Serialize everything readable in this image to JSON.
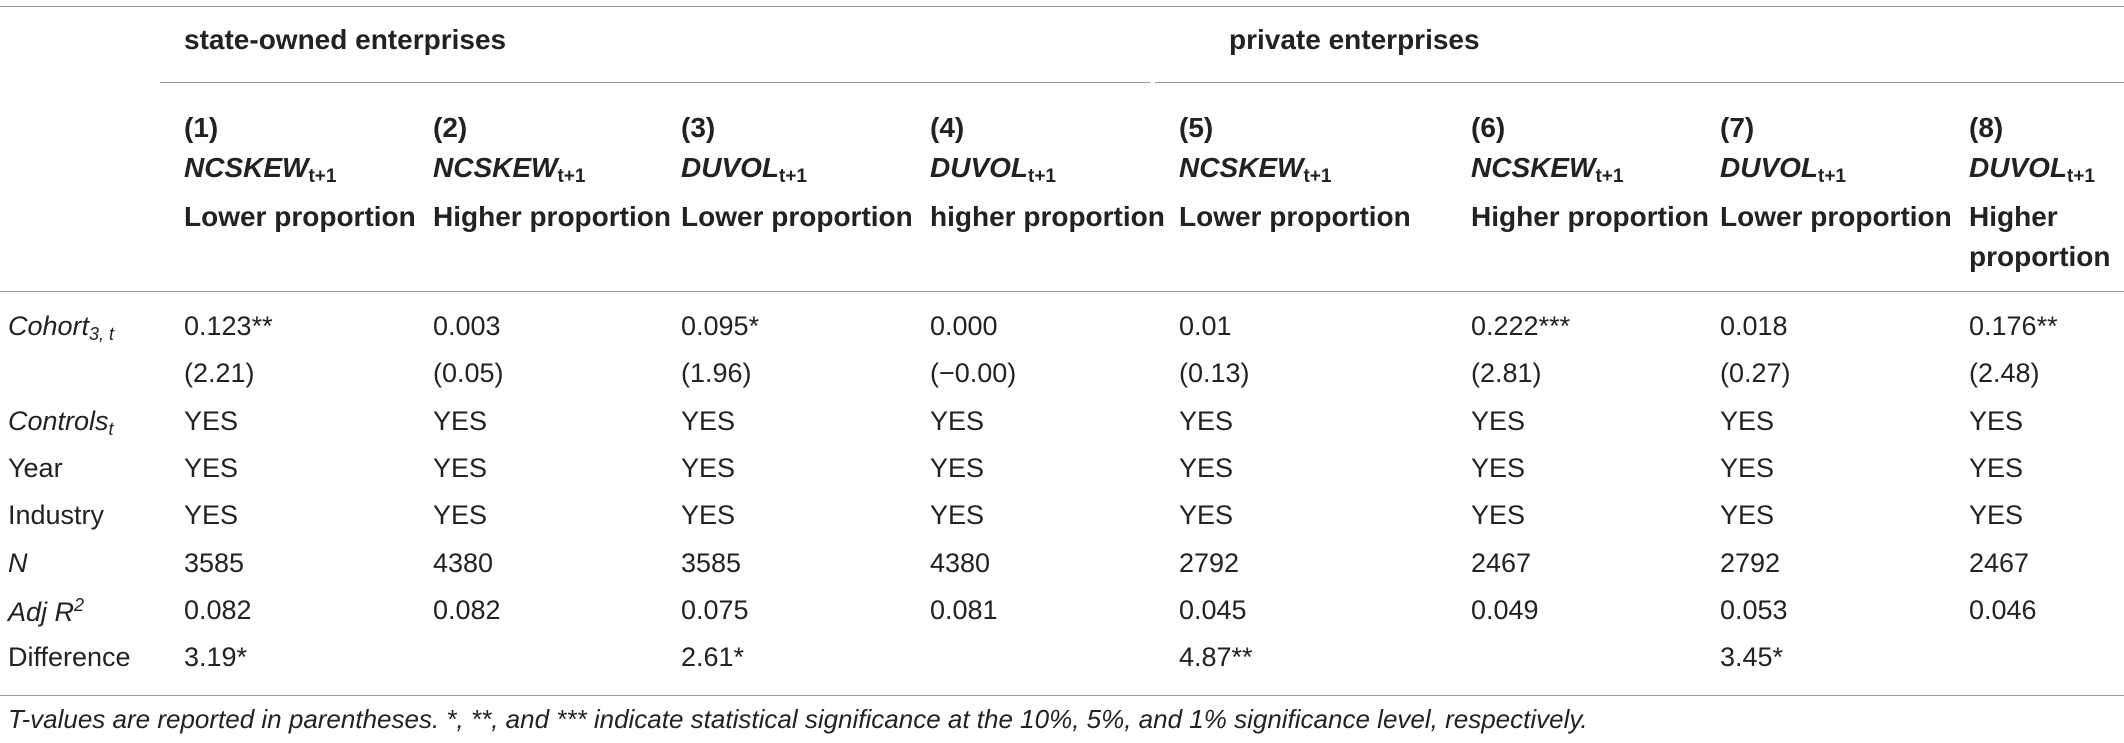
{
  "groups": {
    "state": "state-owned enterprises",
    "private": "private enterprises"
  },
  "columns": [
    {
      "num": "(1)",
      "var": "NCSKEW",
      "sub": "t+1",
      "prop": "Lower proportion"
    },
    {
      "num": "(2)",
      "var": "NCSKEW",
      "sub": "t+1",
      "prop": "Higher proportion"
    },
    {
      "num": "(3)",
      "var": "DUVOL",
      "sub": "t+1",
      "prop": "Lower proportion"
    },
    {
      "num": "(4)",
      "var": "DUVOL",
      "sub": "t+1",
      "prop": "higher proportion"
    },
    {
      "num": "(5)",
      "var": "NCSKEW",
      "sub": "t+1",
      "prop": "Lower proportion"
    },
    {
      "num": "(6)",
      "var": "NCSKEW",
      "sub": "t+1",
      "prop": "Higher proportion"
    },
    {
      "num": "(7)",
      "var": "DUVOL",
      "sub": "t+1",
      "prop": "Lower proportion"
    },
    {
      "num": "(8)",
      "var": "DUVOL",
      "sub": "t+1",
      "prop": "Higher proportion"
    }
  ],
  "rows": {
    "cohort": {
      "label": "Cohort",
      "label_sub": "3, t",
      "values": [
        "0.123**",
        "0.003",
        "0.095*",
        "0.000",
        "0.01",
        "0.222***",
        "0.018",
        "0.176**"
      ],
      "tvalues": [
        "(2.21)",
        "(0.05)",
        "(1.96)",
        "(−0.00)",
        "(0.13)",
        "(2.81)",
        "(0.27)",
        "(2.48)"
      ]
    },
    "controls": {
      "label": "Controls",
      "label_sub": "t",
      "values": [
        "YES",
        "YES",
        "YES",
        "YES",
        "YES",
        "YES",
        "YES",
        "YES"
      ]
    },
    "year": {
      "label": "Year",
      "values": [
        "YES",
        "YES",
        "YES",
        "YES",
        "YES",
        "YES",
        "YES",
        "YES"
      ]
    },
    "industry": {
      "label": "Industry",
      "values": [
        "YES",
        "YES",
        "YES",
        "YES",
        "YES",
        "YES",
        "YES",
        "YES"
      ]
    },
    "n": {
      "label": "N",
      "values": [
        "3585",
        "4380",
        "3585",
        "4380",
        "2792",
        "2467",
        "2792",
        "2467"
      ]
    },
    "adjr2": {
      "label": "Adj R",
      "label_sup": "2",
      "values": [
        "0.082",
        "0.082",
        "0.075",
        "0.081",
        "0.045",
        "0.049",
        "0.053",
        "0.046"
      ]
    },
    "difference": {
      "label": "Difference",
      "values": [
        "3.19*",
        "",
        "2.61*",
        "",
        "4.87**",
        "",
        "3.45*",
        ""
      ]
    }
  },
  "note": "T-values are reported in parentheses. *, **, and *** indicate statistical significance at the 10%, 5%, and 1% significance level, respectively."
}
